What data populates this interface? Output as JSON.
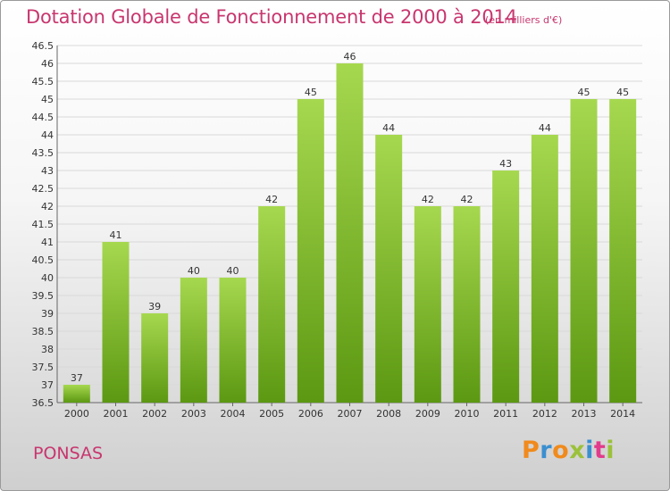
{
  "header": {
    "title": "Dotation Globale de Fonctionnement de 2000 à 2014",
    "unit": "(en milliers d'€)"
  },
  "footer": {
    "place": "PONSAS",
    "logo": "Proxiti"
  },
  "colors": {
    "accent": "#c8366e",
    "bar_light": "#9fd24a",
    "bar_dark": "#5e9a12",
    "grid": "#d9d9d9"
  },
  "chart_data": {
    "type": "bar",
    "title": "Dotation Globale de Fonctionnement de 2000 à 2014",
    "subtitle": "(en milliers d'€)",
    "xlabel": "",
    "ylabel": "",
    "categories": [
      "2000",
      "2001",
      "2002",
      "2003",
      "2004",
      "2005",
      "2006",
      "2007",
      "2008",
      "2009",
      "2010",
      "2011",
      "2012",
      "2013",
      "2014"
    ],
    "values": [
      37,
      41,
      39,
      40,
      40,
      42,
      45,
      46,
      44,
      42,
      42,
      43,
      44,
      45,
      45
    ],
    "ylim": [
      36.5,
      46.5
    ],
    "yticks": [
      36.5,
      37,
      37.5,
      38,
      38.5,
      39,
      39.5,
      40,
      40.5,
      41,
      41.5,
      42,
      42.5,
      43,
      43.5,
      44,
      44.5,
      45,
      45.5,
      46,
      46.5
    ],
    "grid": true,
    "legend": "none"
  }
}
